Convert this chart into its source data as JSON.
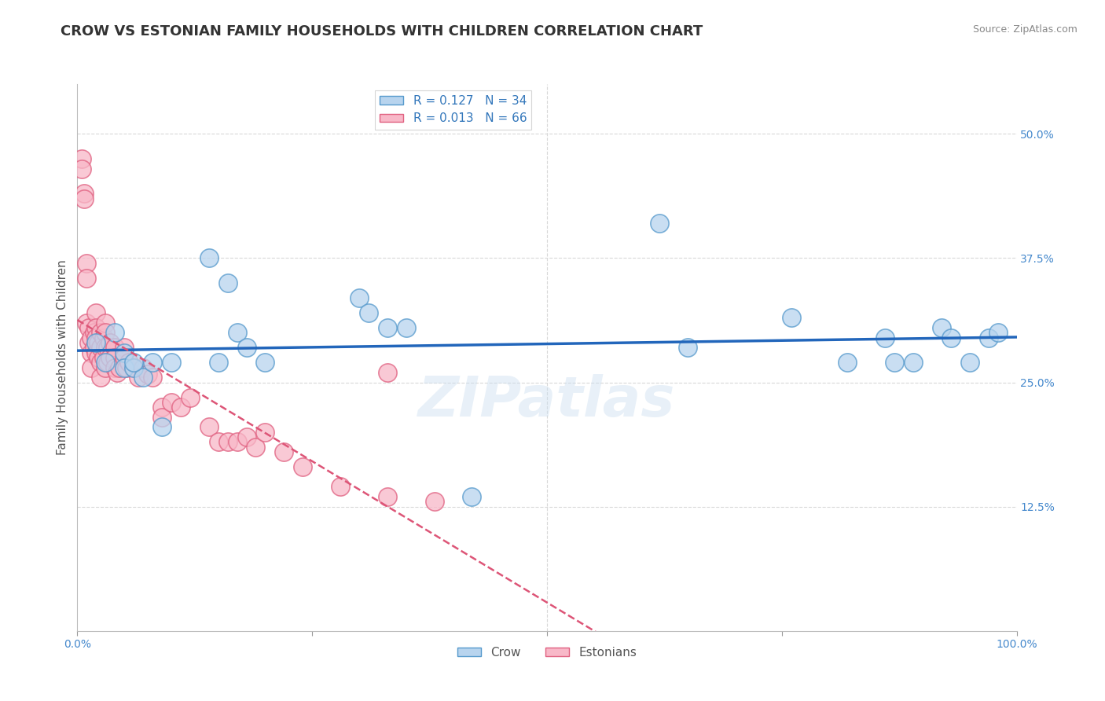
{
  "title": "CROW VS ESTONIAN FAMILY HOUSEHOLDS WITH CHILDREN CORRELATION CHART",
  "source": "Source: ZipAtlas.com",
  "ylabel": "Family Households with Children",
  "xlim": [
    0,
    1.0
  ],
  "ylim": [
    0.0,
    0.55
  ],
  "yticks": [
    0.125,
    0.25,
    0.375,
    0.5
  ],
  "ytick_labels": [
    "12.5%",
    "25.0%",
    "37.5%",
    "50.0%"
  ],
  "background_color": "#ffffff",
  "grid_color": "#d8d8d8",
  "crow_fill": "#b8d4ee",
  "crow_edge": "#5599cc",
  "estonian_fill": "#f8b8c8",
  "estonian_edge": "#e06080",
  "crow_line_color": "#2266bb",
  "estonian_line_color": "#dd5577",
  "legend_crow_R": "0.127",
  "legend_crow_N": "34",
  "legend_estonian_R": "0.013",
  "legend_estonian_N": "66",
  "crow_scatter_x": [
    0.02,
    0.03,
    0.04,
    0.05,
    0.05,
    0.06,
    0.07,
    0.09,
    0.14,
    0.16,
    0.17,
    0.18,
    0.3,
    0.31,
    0.33,
    0.35,
    0.42,
    0.62,
    0.65,
    0.76,
    0.82,
    0.86,
    0.87,
    0.89,
    0.92,
    0.93,
    0.95,
    0.97,
    0.98,
    0.06,
    0.08,
    0.1,
    0.15,
    0.2
  ],
  "crow_scatter_y": [
    0.29,
    0.27,
    0.3,
    0.28,
    0.265,
    0.265,
    0.255,
    0.205,
    0.375,
    0.35,
    0.3,
    0.285,
    0.335,
    0.32,
    0.305,
    0.305,
    0.135,
    0.41,
    0.285,
    0.315,
    0.27,
    0.295,
    0.27,
    0.27,
    0.305,
    0.295,
    0.27,
    0.295,
    0.3,
    0.27,
    0.27,
    0.27,
    0.27,
    0.27
  ],
  "estonian_scatter_x": [
    0.005,
    0.007,
    0.01,
    0.01,
    0.01,
    0.012,
    0.012,
    0.015,
    0.015,
    0.015,
    0.018,
    0.018,
    0.02,
    0.02,
    0.02,
    0.02,
    0.022,
    0.022,
    0.025,
    0.025,
    0.025,
    0.025,
    0.028,
    0.028,
    0.03,
    0.03,
    0.03,
    0.03,
    0.032,
    0.032,
    0.035,
    0.035,
    0.04,
    0.04,
    0.04,
    0.042,
    0.045,
    0.05,
    0.05,
    0.052,
    0.055,
    0.06,
    0.065,
    0.07,
    0.075,
    0.08,
    0.09,
    0.09,
    0.1,
    0.11,
    0.12,
    0.14,
    0.15,
    0.16,
    0.17,
    0.18,
    0.19,
    0.2,
    0.22,
    0.24,
    0.28,
    0.33,
    0.38,
    0.005,
    0.007,
    0.33
  ],
  "estonian_scatter_y": [
    0.475,
    0.44,
    0.37,
    0.355,
    0.31,
    0.305,
    0.29,
    0.295,
    0.28,
    0.265,
    0.3,
    0.285,
    0.32,
    0.305,
    0.295,
    0.28,
    0.29,
    0.275,
    0.3,
    0.285,
    0.27,
    0.255,
    0.295,
    0.275,
    0.31,
    0.3,
    0.285,
    0.265,
    0.285,
    0.27,
    0.29,
    0.275,
    0.285,
    0.275,
    0.265,
    0.26,
    0.265,
    0.285,
    0.275,
    0.265,
    0.27,
    0.265,
    0.255,
    0.265,
    0.258,
    0.255,
    0.225,
    0.215,
    0.23,
    0.225,
    0.235,
    0.205,
    0.19,
    0.19,
    0.19,
    0.195,
    0.185,
    0.2,
    0.18,
    0.165,
    0.145,
    0.135,
    0.13,
    0.465,
    0.435,
    0.26
  ],
  "watermark_text": "ZIPatlas",
  "title_fontsize": 13,
  "axis_label_fontsize": 11,
  "tick_fontsize": 10,
  "legend_fontsize": 11
}
